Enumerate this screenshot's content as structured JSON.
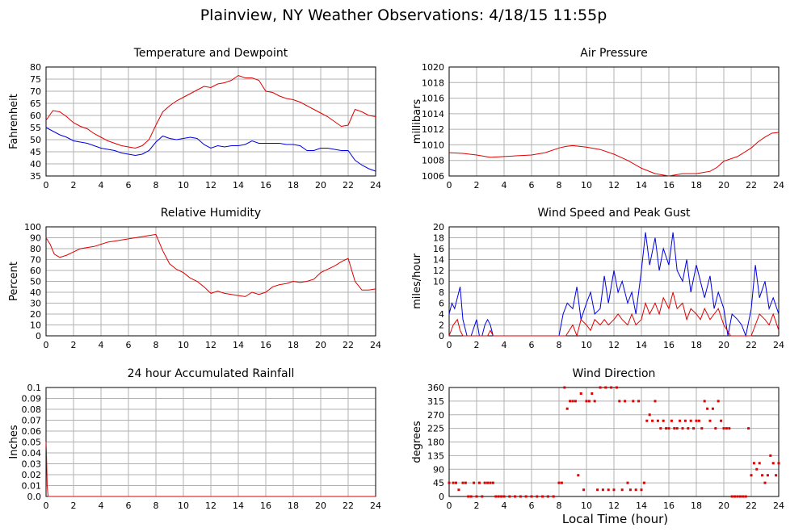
{
  "title": "Plainview, NY Weather Observations: 4/18/15 11:55p",
  "shared_xlabel": "Local Time (hour)",
  "colors": {
    "red": "#e00000",
    "blue": "#0000e0",
    "grid": "#b0b0b0",
    "axis": "#000000"
  },
  "chart_data": [
    {
      "id": "temp",
      "type": "line",
      "title": "Temperature and Dewpoint",
      "ylabel": "Fahrenheit",
      "xlim": [
        0,
        24
      ],
      "ylim": [
        35,
        80
      ],
      "xticks": [
        0,
        2,
        4,
        6,
        8,
        10,
        12,
        14,
        16,
        18,
        20,
        22,
        24
      ],
      "yticks": [
        35,
        40,
        45,
        50,
        55,
        60,
        65,
        70,
        75,
        80
      ],
      "series": [
        {
          "color": "red",
          "x": [
            0,
            0.5,
            1,
            1.5,
            2,
            2.5,
            3,
            3.5,
            4,
            4.5,
            5,
            5.5,
            6,
            6.5,
            7,
            7.5,
            8,
            8.5,
            9,
            9.5,
            10,
            10.5,
            11,
            11.5,
            12,
            12.5,
            13,
            13.5,
            14,
            14.5,
            15,
            15.5,
            16,
            16.5,
            17,
            17.5,
            18,
            18.5,
            19,
            19.5,
            20,
            20.5,
            21,
            21.5,
            22,
            22.5,
            23,
            23.5,
            24
          ],
          "y": [
            58,
            62,
            61.5,
            59.5,
            57,
            55.5,
            54.5,
            52.5,
            51,
            49.5,
            48.5,
            47.5,
            47,
            46.5,
            47.5,
            50,
            56,
            61.5,
            64,
            66,
            67.5,
            69,
            70.5,
            72,
            71.5,
            73,
            73.5,
            74.5,
            76.5,
            75.5,
            75.5,
            74.5,
            70,
            69.5,
            68,
            67,
            66.5,
            65.5,
            64,
            62.5,
            61,
            59.5,
            57.5,
            55.5,
            56,
            62.5,
            61.5,
            60,
            59.5
          ]
        },
        {
          "color": "blue",
          "x": [
            0,
            0.5,
            1,
            1.5,
            2,
            2.5,
            3,
            3.5,
            4,
            4.5,
            5,
            5.5,
            6,
            6.5,
            7,
            7.5,
            8,
            8.5,
            9,
            9.5,
            10,
            10.5,
            11,
            11.5,
            12,
            12.5,
            13,
            13.5,
            14,
            14.5,
            15,
            15.5,
            16,
            16.5,
            17,
            17.5,
            18,
            18.5,
            19,
            19.5,
            20,
            20.5,
            21,
            21.5,
            22,
            22.5,
            23,
            23.5,
            24
          ],
          "y": [
            55,
            53.5,
            52,
            51,
            49.5,
            49,
            48.5,
            47.5,
            46.5,
            46,
            45.5,
            44.5,
            44,
            43.5,
            44,
            45.5,
            49,
            51.5,
            50.5,
            50,
            50.5,
            51,
            50.5,
            48,
            46.5,
            47.5,
            47,
            47.5,
            47.5,
            48,
            49.5,
            48.5,
            48.5,
            48.5,
            48.5,
            48,
            48,
            47.5,
            45.5,
            45.5,
            46.5,
            46.5,
            46,
            45.5,
            45.5,
            41.5,
            39.5,
            38,
            37
          ]
        }
      ]
    },
    {
      "id": "pressure",
      "type": "line",
      "title": "Air Pressure",
      "ylabel": "millibars",
      "xlim": [
        0,
        24
      ],
      "ylim": [
        1006,
        1020
      ],
      "xticks": [
        0,
        2,
        4,
        6,
        8,
        10,
        12,
        14,
        16,
        18,
        20,
        22,
        24
      ],
      "yticks": [
        1006,
        1008,
        1010,
        1012,
        1014,
        1016,
        1018,
        1020
      ],
      "series": [
        {
          "color": "red",
          "x": [
            0,
            1,
            2,
            3,
            4,
            5,
            6,
            7,
            8,
            8.5,
            9,
            10,
            11,
            12,
            13,
            14,
            15,
            16,
            17,
            18,
            19,
            19.5,
            20,
            21,
            22,
            22.5,
            23,
            23.5,
            24
          ],
          "y": [
            1009,
            1008.9,
            1008.7,
            1008.4,
            1008.5,
            1008.6,
            1008.7,
            1009.0,
            1009.6,
            1009.8,
            1009.9,
            1009.7,
            1009.4,
            1008.8,
            1008.0,
            1007.0,
            1006.3,
            1006.0,
            1006.3,
            1006.3,
            1006.6,
            1007.1,
            1007.9,
            1008.5,
            1009.6,
            1010.4,
            1011.0,
            1011.5,
            1011.6
          ]
        }
      ]
    },
    {
      "id": "humidity",
      "type": "line",
      "title": "Relative Humidity",
      "ylabel": "Percent",
      "xlim": [
        0,
        24
      ],
      "ylim": [
        0,
        100
      ],
      "xticks": [
        0,
        2,
        4,
        6,
        8,
        10,
        12,
        14,
        16,
        18,
        20,
        22,
        24
      ],
      "yticks": [
        0,
        10,
        20,
        30,
        40,
        50,
        60,
        70,
        80,
        90,
        100
      ],
      "series": [
        {
          "color": "red",
          "x": [
            0,
            0.3,
            0.6,
            1,
            1.5,
            2,
            2.5,
            3,
            3.5,
            4,
            4.5,
            5,
            5.5,
            6,
            6.5,
            7,
            7.5,
            8,
            8.5,
            9,
            9.5,
            10,
            10.5,
            11,
            11.5,
            12,
            12.5,
            13,
            13.5,
            14,
            14.5,
            15,
            15.5,
            16,
            16.5,
            17,
            17.5,
            18,
            18.5,
            19,
            19.5,
            20,
            20.5,
            21,
            21.5,
            22,
            22.5,
            23,
            23.5,
            24
          ],
          "y": [
            90,
            84,
            75,
            72,
            74,
            77,
            80,
            81,
            82,
            84,
            86,
            87,
            88,
            89,
            90,
            91,
            92,
            93,
            78,
            66,
            61,
            58,
            53,
            50,
            45,
            39,
            41,
            39,
            38,
            37,
            36,
            40,
            38,
            40,
            45,
            47,
            48,
            50,
            49,
            50,
            52,
            58,
            61,
            64,
            68,
            71,
            50,
            42,
            42,
            43
          ]
        }
      ]
    },
    {
      "id": "wind",
      "type": "line",
      "title": "Wind Speed and Peak Gust",
      "ylabel": "miles/hour",
      "xlim": [
        0,
        24
      ],
      "ylim": [
        0,
        20
      ],
      "xticks": [
        0,
        2,
        4,
        6,
        8,
        10,
        12,
        14,
        16,
        18,
        20,
        22,
        24
      ],
      "yticks": [
        0,
        2,
        4,
        6,
        8,
        10,
        12,
        14,
        16,
        18,
        20
      ],
      "series": [
        {
          "color": "blue",
          "x": [
            0,
            0.2,
            0.4,
            0.6,
            0.8,
            1,
            1.3,
            1.6,
            2,
            2.2,
            2.4,
            2.6,
            2.8,
            3,
            3.2,
            3.4,
            3.6,
            4,
            8,
            8.3,
            8.6,
            9,
            9.3,
            9.6,
            10,
            10.3,
            10.6,
            11,
            11.3,
            11.6,
            12,
            12.3,
            12.6,
            13,
            13.3,
            13.6,
            14,
            14.3,
            14.6,
            15,
            15.3,
            15.6,
            16,
            16.3,
            16.6,
            17,
            17.3,
            17.6,
            18,
            18.3,
            18.6,
            19,
            19.3,
            19.6,
            20,
            20.3,
            20.6,
            21,
            21.3,
            21.6,
            22,
            22.3,
            22.6,
            23,
            23.3,
            23.6,
            24
          ],
          "y": [
            4,
            6,
            5,
            7,
            9,
            3,
            0,
            0,
            3,
            0,
            0,
            2,
            3,
            2,
            0,
            0,
            0,
            0,
            0,
            4,
            6,
            5,
            9,
            3,
            6,
            8,
            4,
            5,
            11,
            6,
            12,
            8,
            10,
            6,
            8,
            4,
            12,
            19,
            13,
            18,
            12,
            16,
            13,
            19,
            12,
            10,
            14,
            8,
            13,
            10,
            7,
            11,
            5,
            8,
            5,
            0,
            4,
            3,
            2,
            0,
            5,
            13,
            7,
            10,
            5,
            7,
            4
          ]
        },
        {
          "color": "red",
          "x": [
            0,
            0.3,
            0.6,
            0.8,
            1,
            1.3,
            2,
            2.8,
            3,
            3.2,
            4,
            8,
            8.5,
            9,
            9.3,
            9.6,
            10,
            10.3,
            10.6,
            11,
            11.3,
            11.6,
            12,
            12.3,
            12.6,
            13,
            13.3,
            13.6,
            14,
            14.3,
            14.6,
            15,
            15.3,
            15.6,
            16,
            16.3,
            16.6,
            17,
            17.3,
            17.6,
            18,
            18.3,
            18.6,
            19,
            19.3,
            19.6,
            20,
            20.5,
            21,
            21.5,
            22,
            22.3,
            22.6,
            23,
            23.3,
            23.6,
            24
          ],
          "y": [
            0,
            2,
            3,
            1,
            0,
            0,
            0,
            0,
            1,
            0,
            0,
            0,
            0,
            2,
            0,
            3,
            2,
            1,
            3,
            2,
            3,
            2,
            3,
            4,
            3,
            2,
            4,
            2,
            3,
            6,
            4,
            6,
            4,
            7,
            5,
            8,
            5,
            6,
            3,
            5,
            4,
            3,
            5,
            3,
            4,
            5,
            2,
            0,
            0,
            0,
            0,
            2,
            4,
            3,
            2,
            4,
            1
          ]
        }
      ]
    },
    {
      "id": "rain",
      "type": "line",
      "title": "24 hour Accumulated Rainfall",
      "ylabel": "Inches",
      "xlim": [
        0,
        24
      ],
      "ylim": [
        0,
        0.1
      ],
      "xticks": [
        0,
        2,
        4,
        6,
        8,
        10,
        12,
        14,
        16,
        18,
        20,
        22,
        24
      ],
      "yticks": [
        0.0,
        0.01,
        0.02,
        0.03,
        0.04,
        0.05,
        0.06,
        0.07,
        0.08,
        0.09,
        0.1
      ],
      "ytick_labels": [
        "0.0",
        "0.01",
        "0.02",
        "0.03",
        "0.04",
        "0.05",
        "0.06",
        "0.07",
        "0.08",
        "0.09",
        "0.1"
      ],
      "series": [
        {
          "color": "red",
          "x": [
            0,
            0.03,
            0.08,
            0.15,
            24
          ],
          "y": [
            0.05,
            0.04,
            0.01,
            0,
            0
          ]
        }
      ]
    },
    {
      "id": "direction",
      "type": "scatter",
      "title": "Wind Direction",
      "ylabel": "degrees",
      "xlim": [
        0,
        24
      ],
      "ylim": [
        0,
        360
      ],
      "xticks": [
        0,
        2,
        4,
        6,
        8,
        10,
        12,
        14,
        16,
        18,
        20,
        22,
        24
      ],
      "yticks": [
        0,
        45,
        90,
        135,
        180,
        225,
        270,
        315,
        360
      ],
      "series": [
        {
          "color": "red",
          "x": [
            0,
            0.3,
            0.5,
            0.7,
            1.0,
            1.2,
            1.4,
            1.6,
            1.8,
            2.0,
            2.2,
            2.4,
            2.6,
            2.8,
            3.0,
            3.2,
            3.4,
            3.6,
            3.8,
            4.0,
            4.4,
            4.8,
            5.2,
            5.6,
            6.0,
            6.4,
            6.8,
            7.2,
            7.6,
            8.0,
            8.2,
            8.4,
            8.6,
            8.8,
            9.0,
            9.2,
            9.4,
            9.6,
            9.8,
            10.0,
            10.2,
            10.4,
            10.6,
            10.8,
            11.0,
            11.2,
            11.4,
            11.6,
            11.8,
            12.0,
            12.2,
            12.4,
            12.6,
            12.8,
            13.0,
            13.2,
            13.4,
            13.6,
            13.8,
            14.0,
            14.2,
            14.4,
            14.6,
            14.8,
            15.0,
            15.2,
            15.4,
            15.6,
            15.8,
            16.0,
            16.2,
            16.4,
            16.6,
            16.8,
            17.0,
            17.2,
            17.4,
            17.6,
            17.8,
            18.0,
            18.2,
            18.4,
            18.6,
            18.8,
            19.0,
            19.2,
            19.4,
            19.6,
            19.8,
            20.0,
            20.2,
            20.4,
            20.6,
            20.8,
            21.0,
            21.2,
            21.4,
            21.6,
            21.8,
            22.0,
            22.2,
            22.4,
            22.6,
            22.8,
            23.0,
            23.2,
            23.4,
            23.6,
            23.8,
            24.0
          ],
          "y": [
            45,
            45,
            45,
            22,
            45,
            45,
            0,
            0,
            45,
            0,
            45,
            0,
            45,
            45,
            45,
            45,
            0,
            0,
            0,
            0,
            0,
            0,
            0,
            0,
            0,
            0,
            0,
            0,
            0,
            45,
            45,
            360,
            290,
            315,
            315,
            315,
            70,
            340,
            22,
            315,
            315,
            340,
            315,
            22,
            360,
            22,
            360,
            22,
            360,
            22,
            360,
            315,
            22,
            315,
            45,
            22,
            315,
            22,
            315,
            22,
            45,
            250,
            270,
            250,
            315,
            250,
            225,
            250,
            225,
            225,
            250,
            225,
            225,
            250,
            225,
            250,
            225,
            250,
            225,
            250,
            250,
            225,
            315,
            290,
            250,
            290,
            225,
            315,
            250,
            225,
            225,
            225,
            0,
            0,
            0,
            0,
            0,
            0,
            225,
            70,
            110,
            90,
            110,
            70,
            45,
            70,
            135,
            110,
            70,
            110
          ]
        }
      ]
    }
  ]
}
